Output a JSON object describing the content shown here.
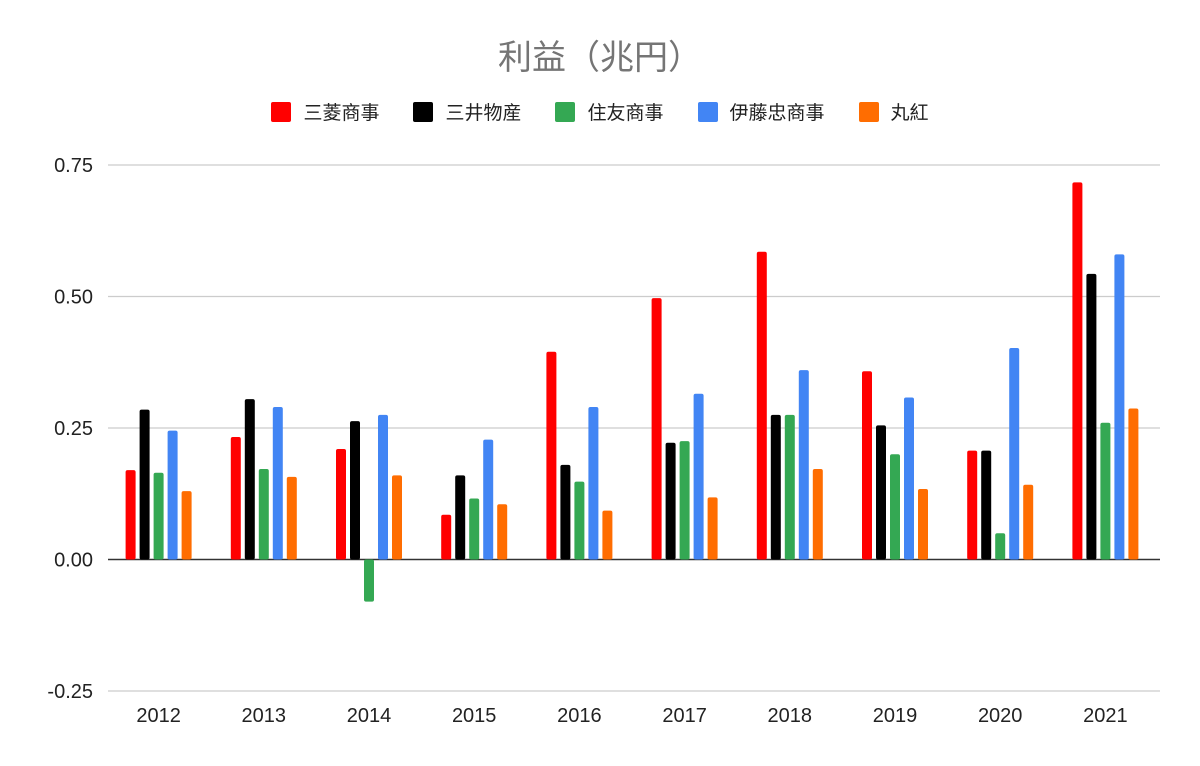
{
  "chart_data": {
    "type": "bar",
    "title": "利益（兆円）",
    "xlabel": "",
    "ylabel": "",
    "categories": [
      "2012",
      "2013",
      "2014",
      "2015",
      "2016",
      "2017",
      "2018",
      "2019",
      "2020",
      "2021"
    ],
    "ylim": [
      -0.25,
      0.75
    ],
    "yticks": [
      "0.75",
      "0.50",
      "0.25",
      "0.00",
      "-0.25"
    ],
    "ytick_values": [
      0.75,
      0.5,
      0.25,
      0.0,
      -0.25
    ],
    "grid": true,
    "legend_position": "top-center",
    "series": [
      {
        "name": "三菱商事",
        "color": "#ff0000",
        "values": [
          0.17,
          0.233,
          0.21,
          0.085,
          0.395,
          0.497,
          0.585,
          0.358,
          0.207,
          0.717
        ]
      },
      {
        "name": "三井物産",
        "color": "#000000",
        "values": [
          0.285,
          0.305,
          0.263,
          0.16,
          0.18,
          0.222,
          0.275,
          0.255,
          0.207,
          0.543
        ]
      },
      {
        "name": "住友商事",
        "color": "#34a853",
        "values": [
          0.165,
          0.172,
          -0.08,
          0.116,
          0.148,
          0.225,
          0.275,
          0.2,
          0.05,
          0.26
        ]
      },
      {
        "name": "伊藤忠商事",
        "color": "#4285f4",
        "values": [
          0.245,
          0.29,
          0.275,
          0.228,
          0.29,
          0.315,
          0.36,
          0.308,
          0.402,
          0.58
        ]
      },
      {
        "name": "丸紅",
        "color": "#ff6d01",
        "values": [
          0.13,
          0.157,
          0.16,
          0.105,
          0.093,
          0.118,
          0.172,
          0.134,
          0.142,
          0.287
        ]
      }
    ]
  }
}
